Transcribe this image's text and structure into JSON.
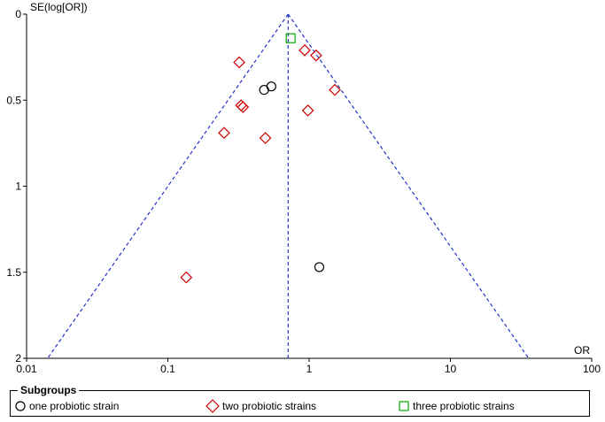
{
  "chart_data": {
    "type": "scatter",
    "title": "",
    "xlabel": "OR",
    "ylabel": "SE(log[OR])",
    "x_scale": "log",
    "xlim": [
      0.01,
      100
    ],
    "ylim": [
      0,
      2
    ],
    "y_reversed": true,
    "x_ticks": [
      "0.01",
      "0.1",
      "1",
      "10",
      "100"
    ],
    "y_ticks": [
      "0",
      "0.5",
      "1",
      "1.5",
      "2"
    ],
    "pooled_or": 0.71,
    "funnel": {
      "style": "dashed",
      "color": "#2233cc",
      "apex_se": 0,
      "base_se": 2
    },
    "series": [
      {
        "name": "one probiotic strain",
        "marker": "circle",
        "color": "#000000",
        "points": [
          {
            "x": 0.48,
            "y": 0.44
          },
          {
            "x": 0.54,
            "y": 0.42
          },
          {
            "x": 1.18,
            "y": 1.47
          }
        ]
      },
      {
        "name": "two probiotic strains",
        "marker": "diamond",
        "color": "#cc0000",
        "points": [
          {
            "x": 0.32,
            "y": 0.28
          },
          {
            "x": 0.93,
            "y": 0.21
          },
          {
            "x": 1.12,
            "y": 0.24
          },
          {
            "x": 0.33,
            "y": 0.53
          },
          {
            "x": 0.34,
            "y": 0.54
          },
          {
            "x": 0.98,
            "y": 0.56
          },
          {
            "x": 1.52,
            "y": 0.44
          },
          {
            "x": 0.25,
            "y": 0.69
          },
          {
            "x": 0.49,
            "y": 0.72
          },
          {
            "x": 0.135,
            "y": 1.53
          }
        ]
      },
      {
        "name": "three probiotic strains",
        "marker": "square",
        "color": "#00aa00",
        "points": [
          {
            "x": 0.74,
            "y": 0.14
          }
        ]
      }
    ],
    "legend": {
      "title": "Subgroups",
      "placement": "bottom"
    }
  }
}
